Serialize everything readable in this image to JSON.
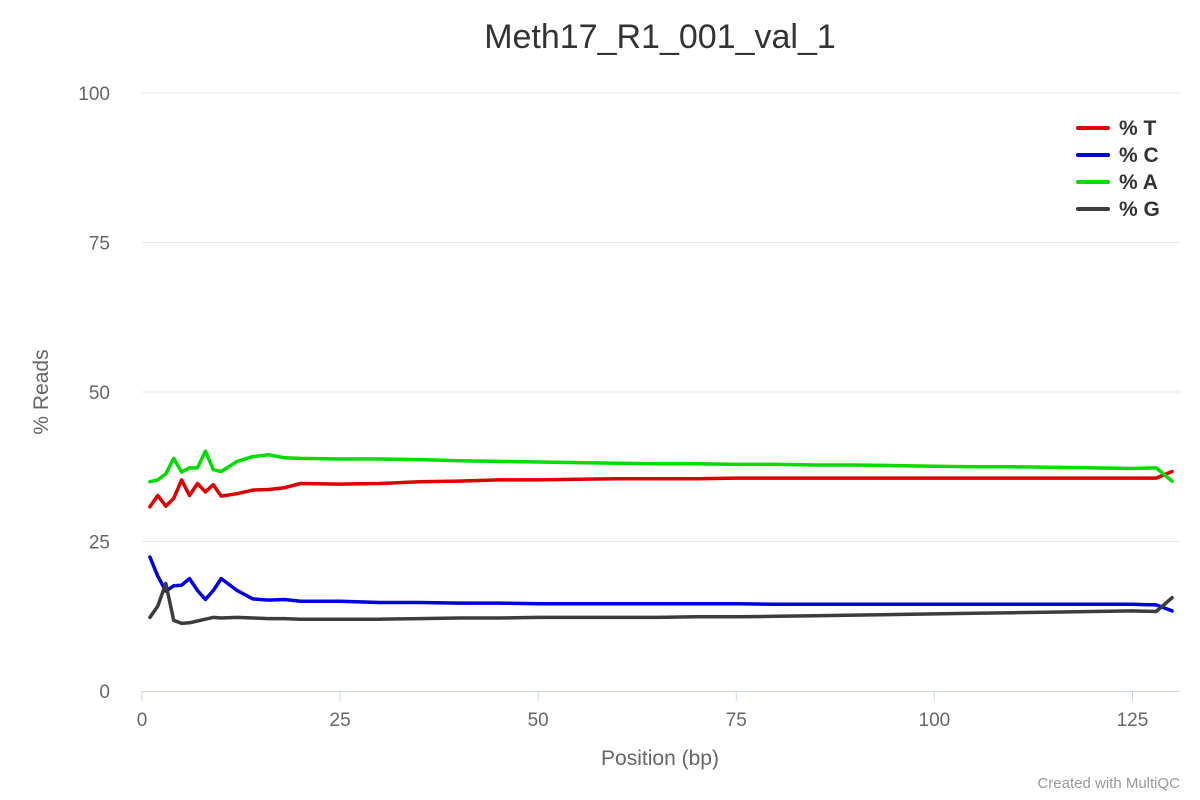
{
  "chart_data": {
    "type": "line",
    "title": "Meth17_R1_001_val_1",
    "xlabel": "Position (bp)",
    "ylabel": "% Reads",
    "xlim": [
      0,
      131
    ],
    "ylim": [
      0,
      100
    ],
    "x_ticks": [
      0,
      25,
      50,
      75,
      100,
      125
    ],
    "y_ticks": [
      0,
      25,
      50,
      75,
      100
    ],
    "grid": true,
    "legend_position": "top-right",
    "credits": "Created with MultiQC",
    "series": [
      {
        "name": "% T",
        "color": "#dc0000",
        "points": [
          [
            1,
            30.8
          ],
          [
            2,
            32.7
          ],
          [
            3,
            30.9
          ],
          [
            4,
            32.2
          ],
          [
            5,
            35.3
          ],
          [
            6,
            32.7
          ],
          [
            7,
            34.7
          ],
          [
            8,
            33.3
          ],
          [
            9,
            34.5
          ],
          [
            10,
            32.6
          ],
          [
            12,
            33.0
          ],
          [
            14,
            33.6
          ],
          [
            16,
            33.7
          ],
          [
            18,
            34.0
          ],
          [
            20,
            34.7
          ],
          [
            25,
            34.6
          ],
          [
            30,
            34.7
          ],
          [
            35,
            35.0
          ],
          [
            40,
            35.1
          ],
          [
            45,
            35.3
          ],
          [
            50,
            35.3
          ],
          [
            55,
            35.4
          ],
          [
            60,
            35.5
          ],
          [
            65,
            35.5
          ],
          [
            70,
            35.5
          ],
          [
            75,
            35.6
          ],
          [
            80,
            35.6
          ],
          [
            85,
            35.6
          ],
          [
            90,
            35.6
          ],
          [
            95,
            35.6
          ],
          [
            100,
            35.6
          ],
          [
            105,
            35.6
          ],
          [
            110,
            35.6
          ],
          [
            115,
            35.6
          ],
          [
            120,
            35.6
          ],
          [
            125,
            35.6
          ],
          [
            128,
            35.6
          ],
          [
            130,
            36.7
          ]
        ]
      },
      {
        "name": "% C",
        "color": "#0000dc",
        "points": [
          [
            1,
            22.4
          ],
          [
            2,
            19.2
          ],
          [
            3,
            16.7
          ],
          [
            4,
            17.6
          ],
          [
            5,
            17.7
          ],
          [
            6,
            18.8
          ],
          [
            7,
            16.8
          ],
          [
            8,
            15.3
          ],
          [
            9,
            16.8
          ],
          [
            10,
            18.8
          ],
          [
            12,
            16.8
          ],
          [
            14,
            15.4
          ],
          [
            16,
            15.2
          ],
          [
            18,
            15.3
          ],
          [
            20,
            15.0
          ],
          [
            25,
            15.0
          ],
          [
            30,
            14.8
          ],
          [
            35,
            14.8
          ],
          [
            40,
            14.7
          ],
          [
            45,
            14.7
          ],
          [
            50,
            14.6
          ],
          [
            55,
            14.6
          ],
          [
            60,
            14.6
          ],
          [
            65,
            14.6
          ],
          [
            70,
            14.6
          ],
          [
            75,
            14.6
          ],
          [
            80,
            14.5
          ],
          [
            85,
            14.5
          ],
          [
            90,
            14.5
          ],
          [
            95,
            14.5
          ],
          [
            100,
            14.5
          ],
          [
            105,
            14.5
          ],
          [
            110,
            14.5
          ],
          [
            115,
            14.5
          ],
          [
            120,
            14.5
          ],
          [
            125,
            14.5
          ],
          [
            128,
            14.4
          ],
          [
            130,
            13.4
          ]
        ]
      },
      {
        "name": "% A",
        "color": "#00dc00",
        "points": [
          [
            1,
            35.0
          ],
          [
            2,
            35.3
          ],
          [
            3,
            36.3
          ],
          [
            4,
            38.9
          ],
          [
            5,
            36.6
          ],
          [
            6,
            37.3
          ],
          [
            7,
            37.3
          ],
          [
            8,
            40.1
          ],
          [
            9,
            37.0
          ],
          [
            10,
            36.7
          ],
          [
            12,
            38.4
          ],
          [
            14,
            39.2
          ],
          [
            16,
            39.5
          ],
          [
            18,
            39.0
          ],
          [
            20,
            38.9
          ],
          [
            25,
            38.8
          ],
          [
            30,
            38.8
          ],
          [
            35,
            38.7
          ],
          [
            40,
            38.5
          ],
          [
            45,
            38.4
          ],
          [
            50,
            38.3
          ],
          [
            55,
            38.2
          ],
          [
            60,
            38.1
          ],
          [
            65,
            38.0
          ],
          [
            70,
            38.0
          ],
          [
            75,
            37.9
          ],
          [
            80,
            37.9
          ],
          [
            85,
            37.8
          ],
          [
            90,
            37.8
          ],
          [
            95,
            37.7
          ],
          [
            100,
            37.6
          ],
          [
            105,
            37.5
          ],
          [
            110,
            37.5
          ],
          [
            115,
            37.4
          ],
          [
            120,
            37.3
          ],
          [
            125,
            37.2
          ],
          [
            128,
            37.3
          ],
          [
            130,
            35.1
          ]
        ]
      },
      {
        "name": "% G",
        "color": "#3c3c3c",
        "points": [
          [
            1,
            12.3
          ],
          [
            2,
            14.2
          ],
          [
            3,
            18.0
          ],
          [
            4,
            11.8
          ],
          [
            5,
            11.3
          ],
          [
            6,
            11.4
          ],
          [
            7,
            11.7
          ],
          [
            8,
            12.0
          ],
          [
            9,
            12.3
          ],
          [
            10,
            12.2
          ],
          [
            12,
            12.3
          ],
          [
            14,
            12.2
          ],
          [
            16,
            12.1
          ],
          [
            18,
            12.1
          ],
          [
            20,
            12.0
          ],
          [
            25,
            12.0
          ],
          [
            30,
            12.0
          ],
          [
            35,
            12.1
          ],
          [
            40,
            12.2
          ],
          [
            45,
            12.2
          ],
          [
            50,
            12.3
          ],
          [
            55,
            12.3
          ],
          [
            60,
            12.3
          ],
          [
            65,
            12.3
          ],
          [
            70,
            12.4
          ],
          [
            75,
            12.4
          ],
          [
            80,
            12.5
          ],
          [
            85,
            12.6
          ],
          [
            90,
            12.7
          ],
          [
            95,
            12.8
          ],
          [
            100,
            12.9
          ],
          [
            105,
            13.0
          ],
          [
            110,
            13.1
          ],
          [
            115,
            13.2
          ],
          [
            120,
            13.3
          ],
          [
            125,
            13.4
          ],
          [
            128,
            13.3
          ],
          [
            130,
            15.6
          ]
        ]
      }
    ]
  }
}
